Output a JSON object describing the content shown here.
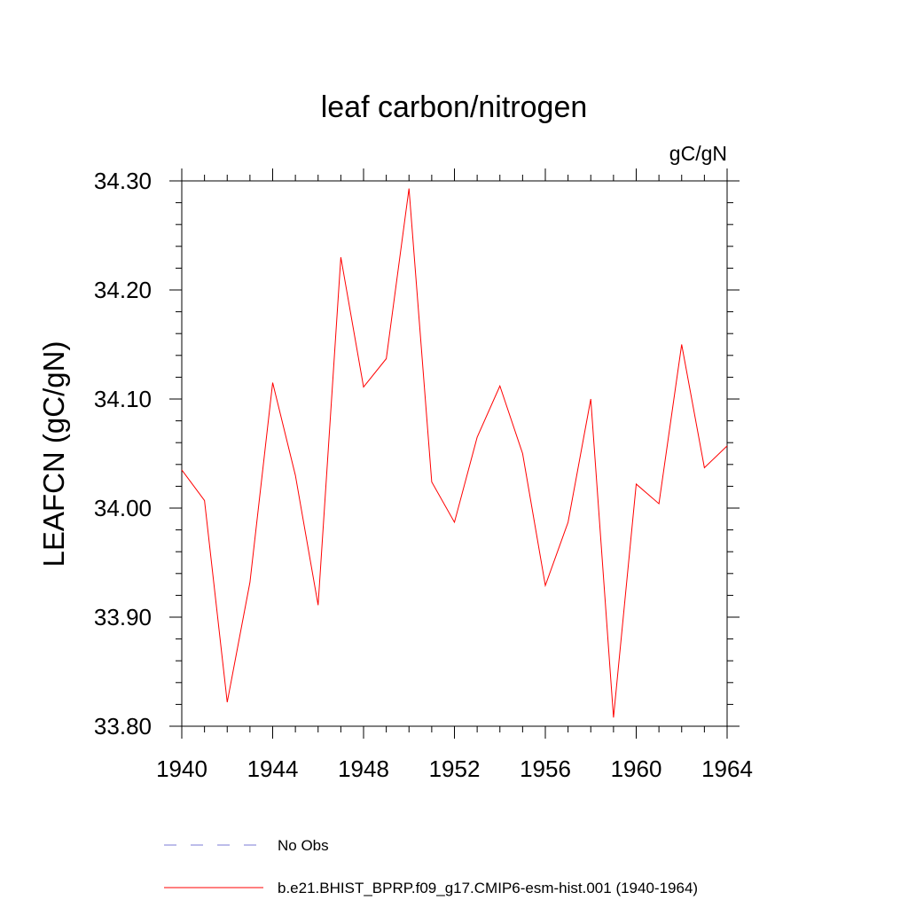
{
  "chart_data": {
    "type": "line",
    "title": "leaf carbon/nitrogen",
    "units_label": "gC/gN",
    "ylabel": "LEAFCN  (gC/gN)",
    "xlabel": "",
    "xlim": [
      1940,
      1964
    ],
    "ylim": [
      33.8,
      34.3
    ],
    "x_ticks": [
      1940,
      1944,
      1948,
      1952,
      1956,
      1960,
      1964
    ],
    "y_ticks": [
      "33.80",
      "33.90",
      "34.00",
      "34.10",
      "34.20",
      "34.30"
    ],
    "x_minor_step": 1,
    "y_minor_step": 0.02,
    "grid": false,
    "series": [
      {
        "name": "b.e21.BHIST_BPRP.f09_g17.CMIP6-esm-hist.001 (1940-1964)",
        "color": "#ff0000",
        "style": "solid",
        "x": [
          1940,
          1941,
          1942,
          1943,
          1944,
          1945,
          1946,
          1947,
          1948,
          1949,
          1950,
          1951,
          1952,
          1953,
          1954,
          1955,
          1956,
          1957,
          1958,
          1959,
          1960,
          1961,
          1962,
          1963,
          1964
        ],
        "values": [
          34.035,
          34.007,
          33.822,
          33.932,
          34.115,
          34.03,
          33.911,
          34.23,
          34.111,
          34.137,
          34.293,
          34.024,
          33.987,
          34.065,
          34.112,
          34.05,
          33.929,
          33.987,
          34.1,
          33.808,
          34.022,
          34.004,
          34.15,
          34.037,
          34.057
        ]
      }
    ],
    "legend": {
      "placement": "bottom-left",
      "entries": [
        {
          "label": "No Obs",
          "color": "#7b7bd6",
          "style": "dashed"
        },
        {
          "label": "b.e21.BHIST_BPRP.f09_g17.CMIP6-esm-hist.001 (1940-1964)",
          "color": "#ff0000",
          "style": "solid"
        }
      ]
    }
  }
}
